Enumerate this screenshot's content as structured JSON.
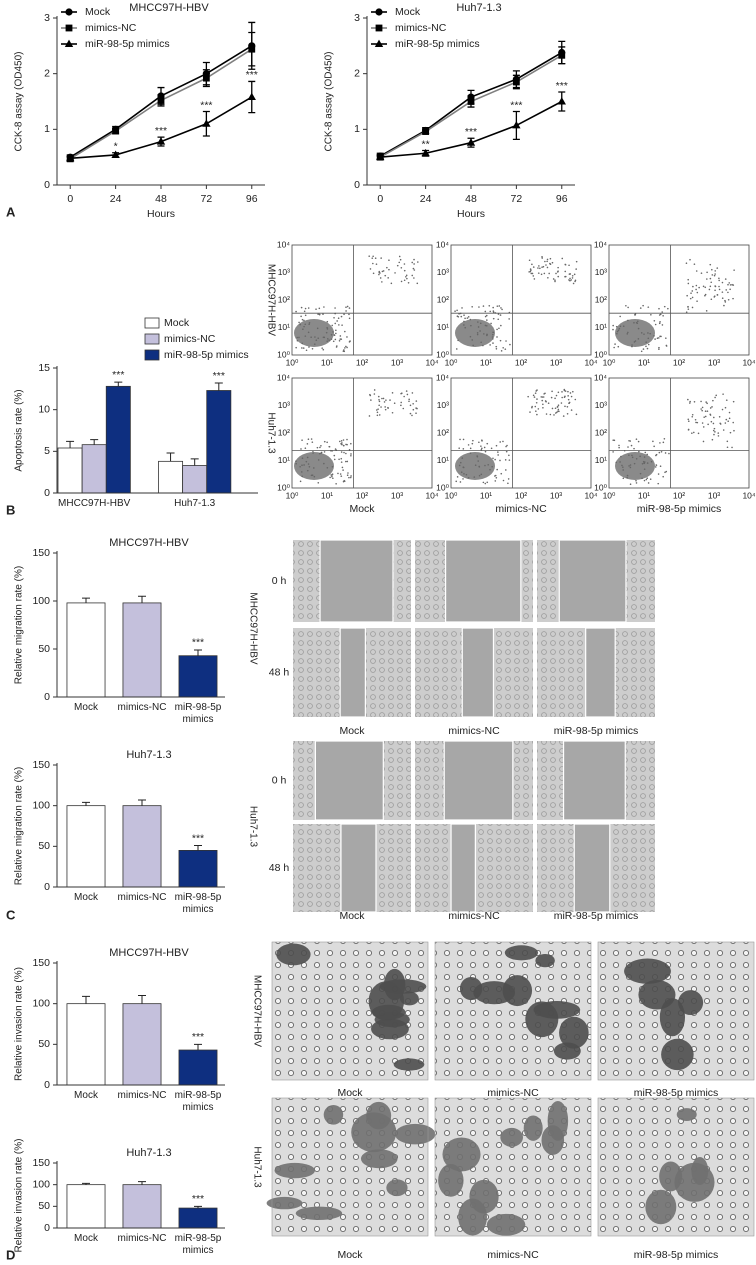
{
  "panel_labels": [
    "A",
    "B",
    "C",
    "D"
  ],
  "chart_data": [
    {
      "type": "line",
      "title": "MHCC97H-HBV",
      "xlabel": "Hours",
      "ylabel": "CCK-8 assay (OD450)",
      "x": [
        0,
        24,
        48,
        72,
        96
      ],
      "xlim": [
        -7,
        103
      ],
      "xticks": [
        0,
        24,
        48,
        72,
        96
      ],
      "ylim": [
        0,
        3
      ],
      "yticks": [
        0,
        1,
        2,
        3
      ],
      "grid": false,
      "legend": "upper left",
      "series": [
        {
          "name": "Mock",
          "color": "#000000",
          "marker": "o",
          "marker_color": "#000000",
          "values": [
            0.5,
            1.0,
            1.6,
            2.0,
            2.5
          ],
          "errors": [
            0.04,
            0.05,
            0.15,
            0.2,
            0.42
          ]
        },
        {
          "name": "mimics-NC",
          "color": "#808080",
          "marker": "s",
          "marker_color": "#000000",
          "values": [
            0.47,
            0.97,
            1.52,
            1.92,
            2.44
          ],
          "errors": [
            0.04,
            0.05,
            0.1,
            0.15,
            0.3
          ]
        },
        {
          "name": "miR-98-5p mimics",
          "color": "#000000",
          "marker": "^",
          "marker_color": "#000000",
          "values": [
            0.48,
            0.54,
            0.78,
            1.1,
            1.58
          ],
          "errors": [
            0.04,
            0.04,
            0.08,
            0.22,
            0.28
          ]
        }
      ],
      "annotations": [
        {
          "x": 24,
          "series": "miR-98-5p mimics",
          "text": "*"
        },
        {
          "x": 48,
          "series": "miR-98-5p mimics",
          "text": "***"
        },
        {
          "x": 72,
          "series": "miR-98-5p mimics",
          "text": "***"
        },
        {
          "x": 96,
          "series": "miR-98-5p mimics",
          "text": "***"
        }
      ]
    },
    {
      "type": "line",
      "title": "Huh7-1.3",
      "xlabel": "Hours",
      "ylabel": "CCK-8 assay (OD450)",
      "x": [
        0,
        24,
        48,
        72,
        96
      ],
      "xlim": [
        -7,
        103
      ],
      "xticks": [
        0,
        24,
        48,
        72,
        96
      ],
      "ylim": [
        0,
        3
      ],
      "yticks": [
        0,
        1,
        2,
        3
      ],
      "grid": false,
      "legend": "upper left",
      "series": [
        {
          "name": "Mock",
          "color": "#000000",
          "marker": "o",
          "marker_color": "#000000",
          "values": [
            0.52,
            0.98,
            1.58,
            1.9,
            2.38
          ],
          "errors": [
            0.05,
            0.05,
            0.12,
            0.15,
            0.2
          ]
        },
        {
          "name": "mimics-NC",
          "color": "#808080",
          "marker": "s",
          "marker_color": "#000000",
          "values": [
            0.5,
            0.96,
            1.5,
            1.85,
            2.33
          ],
          "errors": [
            0.04,
            0.04,
            0.1,
            0.12,
            0.15
          ]
        },
        {
          "name": "miR-98-5p mimics",
          "color": "#000000",
          "marker": "^",
          "marker_color": "#000000",
          "values": [
            0.5,
            0.57,
            0.76,
            1.07,
            1.5
          ],
          "errors": [
            0.04,
            0.05,
            0.08,
            0.25,
            0.17
          ]
        }
      ],
      "annotations": [
        {
          "x": 24,
          "series": "miR-98-5p mimics",
          "text": "**"
        },
        {
          "x": 48,
          "series": "miR-98-5p mimics",
          "text": "***"
        },
        {
          "x": 72,
          "series": "miR-98-5p mimics",
          "text": "***"
        },
        {
          "x": 96,
          "series": "miR-98-5p mimics",
          "text": "***"
        }
      ]
    },
    {
      "type": "bar",
      "ylabel": "Apoptosis rate (%)",
      "categories": [
        "MHCC97H-HBV",
        "Huh7-1.3"
      ],
      "ylim": [
        0,
        15
      ],
      "yticks": [
        0,
        5,
        10,
        15
      ],
      "grid": false,
      "legend": "upper right",
      "series": [
        {
          "name": "Mock",
          "color": "#ffffff",
          "values": [
            5.4,
            3.8
          ],
          "errors": [
            0.8,
            1.0
          ]
        },
        {
          "name": "mimics-NC",
          "color": "#c4c0dc",
          "values": [
            5.8,
            3.3
          ],
          "errors": [
            0.6,
            0.8
          ]
        },
        {
          "name": "miR-98-5p mimics",
          "color": "#0e2f80",
          "values": [
            12.8,
            12.3
          ],
          "errors": [
            0.5,
            0.9
          ]
        }
      ],
      "annotations": [
        {
          "category": "MHCC97H-HBV",
          "series": "miR-98-5p mimics",
          "text": "***"
        },
        {
          "category": "Huh7-1.3",
          "series": "miR-98-5p mimics",
          "text": "***"
        }
      ]
    },
    {
      "type": "bar",
      "title": "MHCC97H-HBV",
      "ylabel": "Relative migration rate (%)",
      "categories": [
        "Mock",
        "mimics-NC",
        "miR-98-5p mimics"
      ],
      "values": [
        98,
        98,
        43
      ],
      "errors": [
        5,
        7,
        6
      ],
      "colors": [
        "#ffffff",
        "#c4c0dc",
        "#0e2f80"
      ],
      "ylim": [
        0,
        150
      ],
      "yticks": [
        0,
        50,
        100,
        150
      ],
      "grid": false,
      "annotations": [
        {
          "category": "miR-98-5p mimics",
          "text": "***"
        }
      ]
    },
    {
      "type": "bar",
      "title": "Huh7-1.3",
      "ylabel": "Relative migration rate (%)",
      "categories": [
        "Mock",
        "mimics-NC",
        "miR-98-5p mimics"
      ],
      "values": [
        100,
        100,
        45
      ],
      "errors": [
        4,
        7,
        6
      ],
      "colors": [
        "#ffffff",
        "#c4c0dc",
        "#0e2f80"
      ],
      "ylim": [
        0,
        150
      ],
      "yticks": [
        0,
        50,
        100,
        150
      ],
      "grid": false,
      "annotations": [
        {
          "category": "miR-98-5p mimics",
          "text": "***"
        }
      ]
    },
    {
      "type": "bar",
      "title": "MHCC97H-HBV",
      "ylabel": "Relative invasion rate (%)",
      "categories": [
        "Mock",
        "mimics-NC",
        "miR-98-5p mimics"
      ],
      "values": [
        100,
        100,
        43
      ],
      "errors": [
        9,
        10,
        7
      ],
      "colors": [
        "#ffffff",
        "#c4c0dc",
        "#0e2f80"
      ],
      "ylim": [
        0,
        150
      ],
      "yticks": [
        0,
        50,
        100,
        150
      ],
      "grid": false,
      "annotations": [
        {
          "category": "miR-98-5p mimics",
          "text": "***"
        }
      ]
    },
    {
      "type": "bar",
      "title": "Huh7-1.3",
      "ylabel": "Relative invasion rate (%)",
      "categories": [
        "Mock",
        "mimics-NC",
        "miR-98-5p mimics"
      ],
      "values": [
        100,
        100,
        46
      ],
      "errors": [
        3,
        7,
        4
      ],
      "colors": [
        "#ffffff",
        "#c4c0dc",
        "#0e2f80"
      ],
      "ylim": [
        0,
        150
      ],
      "yticks": [
        0,
        50,
        100,
        150
      ],
      "grid": false,
      "annotations": [
        {
          "category": "miR-98-5p mimics",
          "text": "***"
        }
      ]
    }
  ],
  "flow": {
    "tick_labels": [
      "10⁰",
      "10¹",
      "10²",
      "10³",
      "10⁴"
    ],
    "row_labels": [
      "MHCC97H-HBV",
      "Huh7-1.3"
    ],
    "col_labels": [
      "Mock",
      "mimics-NC",
      "miR-98-5p mimics"
    ]
  },
  "wound": {
    "time_labels": [
      "0 h",
      "48 h"
    ],
    "row_labels": [
      "MHCC97H-HBV",
      "Huh7-1.3"
    ],
    "col_labels": [
      "Mock",
      "mimics-NC",
      "miR-98-5p mimics"
    ]
  },
  "invasion_images": {
    "row_labels": [
      "MHCC97H-HBV",
      "Huh7-1.3"
    ],
    "col_labels": [
      "Mock",
      "mimics-NC",
      "miR-98-5p mimics"
    ]
  }
}
